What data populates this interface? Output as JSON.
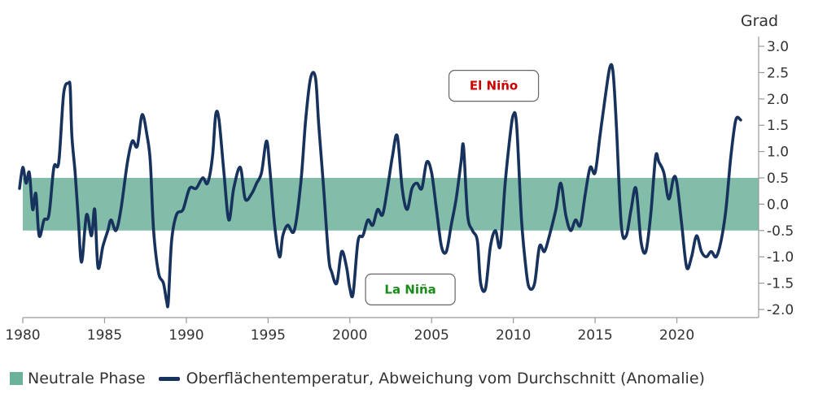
{
  "chart_data": {
    "type": "line",
    "title": "",
    "ylabel": "Grad",
    "xlabel": "",
    "xlim": [
      1980,
      2025
    ],
    "ylim": [
      -2.0,
      3.0
    ],
    "x_ticks": [
      "1980",
      "1985",
      "1990",
      "1995",
      "2000",
      "2005",
      "2010",
      "2015",
      "2020"
    ],
    "y_ticks": [
      "3.0",
      "2.5",
      "2.0",
      "1.5",
      "1.0",
      "0.5",
      "0.0",
      "-0.5",
      "-1.0",
      "-1.5",
      "-2.0"
    ],
    "neutral_band": {
      "name": "Neutrale Phase",
      "low": -0.5,
      "high": 0.5
    },
    "annotations": [
      {
        "text": "El Niño",
        "x": 2008.8,
        "y": 2.25,
        "color": "#cc0000"
      },
      {
        "text": "La Niña",
        "x": 2003.7,
        "y": -1.62,
        "color": "#1a8a1a"
      }
    ],
    "series": [
      {
        "name": "Oberflächentemperatur, Abweichung vom Durchschnitt (Anomalie)",
        "x": [
          1979.8,
          1980.0,
          1980.2,
          1980.4,
          1980.6,
          1980.8,
          1981.0,
          1981.3,
          1981.6,
          1981.9,
          1982.2,
          1982.5,
          1982.8,
          1982.9,
          1983.0,
          1983.2,
          1983.4,
          1983.6,
          1983.9,
          1984.2,
          1984.4,
          1984.6,
          1984.9,
          1985.2,
          1985.4,
          1985.7,
          1986.0,
          1986.4,
          1986.7,
          1987.0,
          1987.3,
          1987.6,
          1987.8,
          1988.0,
          1988.3,
          1988.6,
          1988.8,
          1988.9,
          1989.1,
          1989.4,
          1989.8,
          1990.2,
          1990.6,
          1991.0,
          1991.3,
          1991.6,
          1991.8,
          1992.0,
          1992.3,
          1992.6,
          1992.9,
          1993.3,
          1993.6,
          1994.0,
          1994.3,
          1994.6,
          1994.9,
          1995.1,
          1995.4,
          1995.7,
          1995.9,
          1996.2,
          1996.6,
          1997.0,
          1997.3,
          1997.6,
          1997.9,
          1998.1,
          1998.4,
          1998.7,
          1998.9,
          1999.2,
          1999.5,
          1999.8,
          2000.0,
          2000.2,
          2000.5,
          2000.8,
          2001.1,
          2001.4,
          2001.7,
          2002.0,
          2002.3,
          2002.6,
          2002.9,
          2003.2,
          2003.5,
          2003.8,
          2004.1,
          2004.4,
          2004.7,
          2005.0,
          2005.3,
          2005.6,
          2005.9,
          2006.2,
          2006.5,
          2006.8,
          2006.95,
          2007.2,
          2007.5,
          2007.8,
          2008.0,
          2008.3,
          2008.6,
          2008.9,
          2009.2,
          2009.5,
          2009.8,
          2010.0,
          2010.2,
          2010.5,
          2010.8,
          2011.0,
          2011.3,
          2011.6,
          2011.9,
          2012.2,
          2012.6,
          2012.9,
          2013.2,
          2013.5,
          2013.8,
          2014.1,
          2014.4,
          2014.7,
          2015.0,
          2015.3,
          2015.6,
          2015.9,
          2016.1,
          2016.3,
          2016.6,
          2016.9,
          2017.2,
          2017.5,
          2017.8,
          2018.1,
          2018.4,
          2018.7,
          2018.9,
          2019.2,
          2019.5,
          2019.8,
          2020.0,
          2020.3,
          2020.6,
          2020.9,
          2021.2,
          2021.5,
          2021.8,
          2022.1,
          2022.4,
          2022.7,
          2023.0,
          2023.3,
          2023.6,
          2023.9
        ],
        "values": [
          0.3,
          0.7,
          0.4,
          0.6,
          -0.1,
          0.2,
          -0.6,
          -0.3,
          -0.2,
          0.7,
          0.8,
          2.1,
          2.3,
          2.2,
          1.3,
          0.6,
          -0.3,
          -1.1,
          -0.2,
          -0.6,
          -0.1,
          -1.2,
          -0.8,
          -0.5,
          -0.3,
          -0.5,
          -0.1,
          0.8,
          1.2,
          1.1,
          1.7,
          1.3,
          0.8,
          -0.5,
          -1.3,
          -1.5,
          -1.85,
          -1.85,
          -0.7,
          -0.2,
          -0.1,
          0.3,
          0.3,
          0.5,
          0.4,
          0.9,
          1.7,
          1.6,
          0.6,
          -0.3,
          0.3,
          0.7,
          0.1,
          0.2,
          0.4,
          0.6,
          1.2,
          0.7,
          -0.4,
          -1.0,
          -0.6,
          -0.4,
          -0.5,
          0.4,
          1.6,
          2.4,
          2.4,
          1.5,
          0.3,
          -1.0,
          -1.3,
          -1.5,
          -0.9,
          -1.2,
          -1.6,
          -1.7,
          -0.7,
          -0.6,
          -0.3,
          -0.4,
          -0.1,
          -0.2,
          0.3,
          0.9,
          1.3,
          0.3,
          -0.1,
          0.3,
          0.4,
          0.3,
          0.8,
          0.6,
          -0.1,
          -0.8,
          -0.9,
          -0.4,
          0.1,
          0.8,
          1.1,
          -0.2,
          -0.5,
          -0.7,
          -1.5,
          -1.6,
          -0.8,
          -0.5,
          -0.8,
          0.4,
          1.3,
          1.7,
          1.5,
          -0.3,
          -1.3,
          -1.6,
          -1.5,
          -0.8,
          -0.9,
          -0.6,
          -0.1,
          0.4,
          -0.2,
          -0.5,
          -0.3,
          -0.4,
          0.2,
          0.7,
          0.6,
          1.3,
          2.0,
          2.6,
          2.5,
          1.5,
          -0.4,
          -0.6,
          -0.1,
          0.3,
          -0.7,
          -0.9,
          -0.2,
          0.9,
          0.8,
          0.6,
          0.1,
          0.5,
          0.4,
          -0.4,
          -1.2,
          -1.0,
          -0.6,
          -0.9,
          -1.0,
          -0.9,
          -1.0,
          -0.7,
          -0.1,
          0.9,
          1.6,
          1.6
        ],
        "color": "#17325c"
      }
    ]
  },
  "legend": {
    "band_label": "Neutrale Phase",
    "line_label": "Oberflächentemperatur, Abweichung vom Durchschnitt (Anomalie)"
  },
  "colors": {
    "band": "#6bb29a",
    "line": "#17325c",
    "axis": "#9a9a9a",
    "el_nino": "#cc0000",
    "la_nina": "#1a8a1a"
  }
}
